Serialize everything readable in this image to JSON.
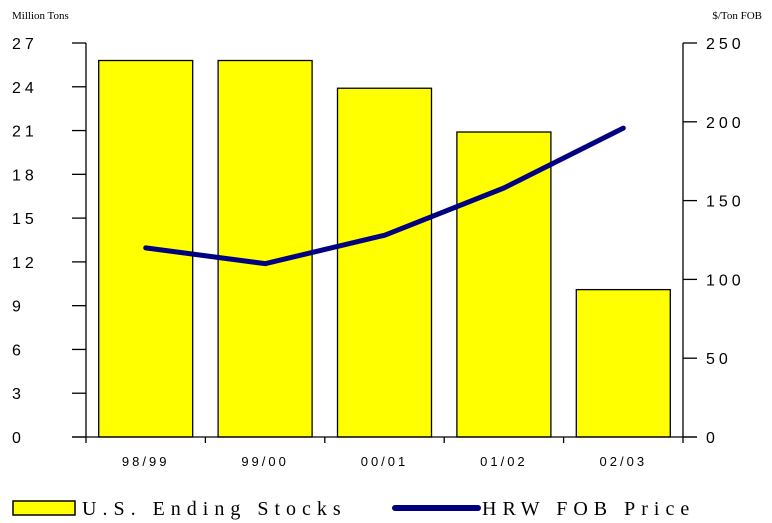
{
  "chart_data": {
    "type": "bar",
    "categories": [
      "98/99",
      "99/00",
      "00/01",
      "01/02",
      "02/03"
    ],
    "series": [
      {
        "name": "U.S. Ending Stocks",
        "type": "bar",
        "axis": "left",
        "values": [
          25.8,
          25.8,
          23.9,
          20.9,
          10.1
        ],
        "color": "#FFFF00"
      },
      {
        "name": "HRW FOB Price",
        "type": "line",
        "axis": "right",
        "values": [
          120,
          110,
          128,
          158,
          196
        ],
        "color": "#000080"
      }
    ],
    "ylabel_left": "Million Tons",
    "ylabel_right": "$/Ton FOB",
    "ylim_left": [
      0,
      27
    ],
    "ylim_right": [
      0,
      250
    ],
    "yticks_left": [
      "0",
      "3",
      "6",
      "9",
      "12",
      "15",
      "18",
      "21",
      "24",
      "27"
    ],
    "yticks_right": [
      "0",
      "50",
      "100",
      "150",
      "200",
      "250"
    ],
    "legend_position": "bottom",
    "grid": false
  }
}
